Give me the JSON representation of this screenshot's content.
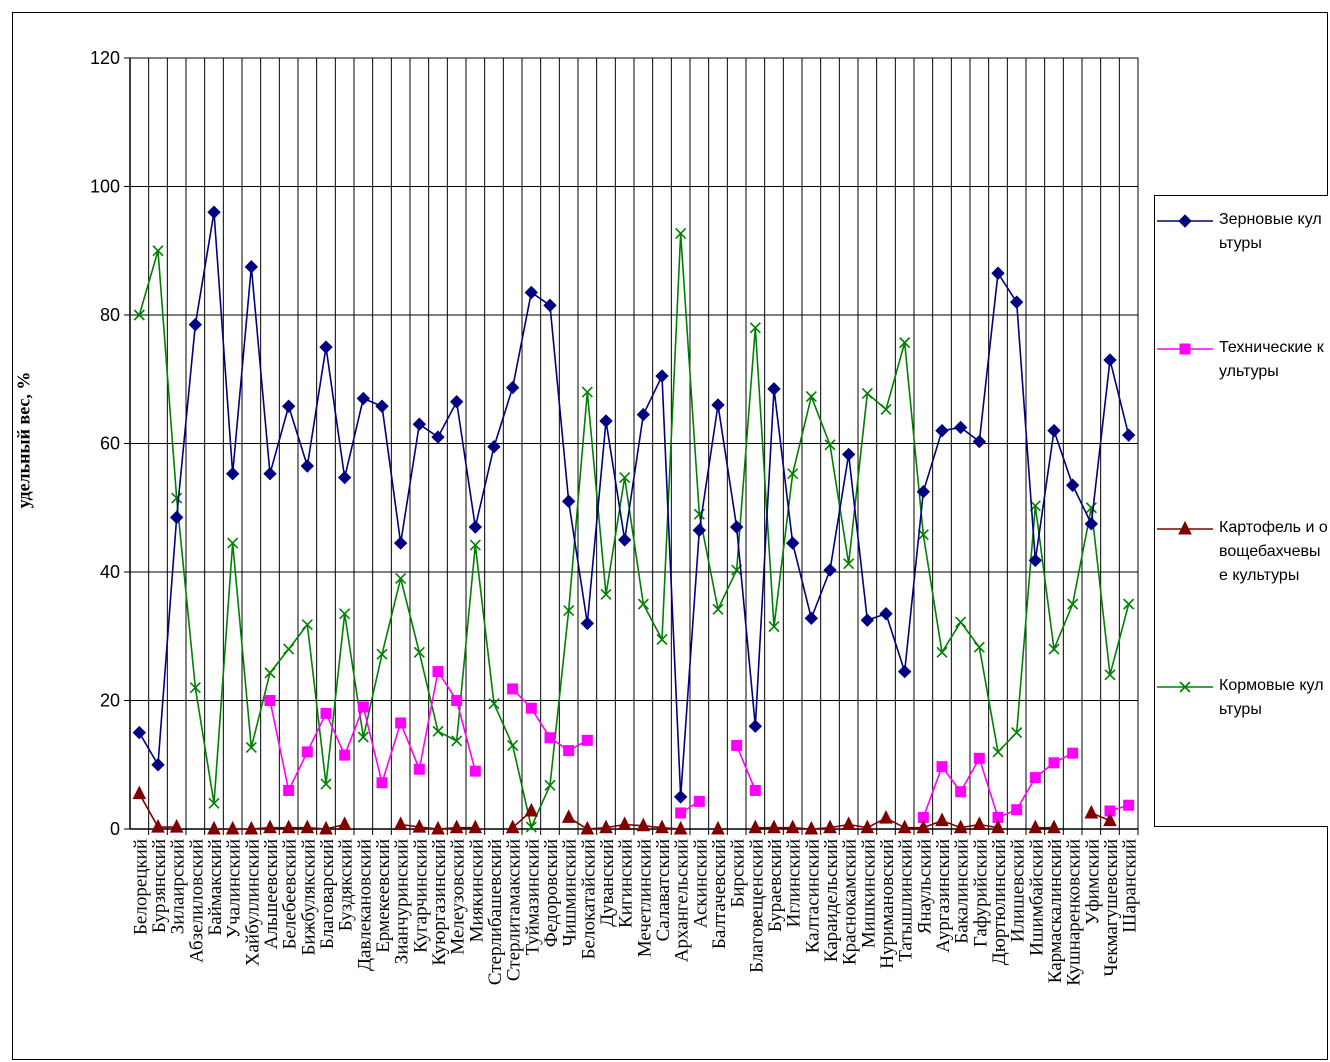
{
  "chart_data": {
    "type": "line",
    "title": "",
    "xlabel": "",
    "ylabel": "удельный вес, %",
    "ylim": [
      0,
      120
    ],
    "yticks": [
      "0",
      "20",
      "40",
      "60",
      "80",
      "100",
      "120"
    ],
    "grid": true,
    "legend_position": "right",
    "categories": [
      "Белорецкий",
      "Бурзянский",
      "Зилаирский",
      "Абзелиловский",
      "Баймакский",
      "Учалинский",
      "Хайбуллинский",
      "Альшеевский",
      "Белебеевский",
      "Бижбулякский",
      "Благоварский",
      "Буздякский",
      "Давлекановский",
      "Ермекеевский",
      "Зианчуринский",
      "Кугарчинский",
      "Куюргазинский",
      "Мелеузовский",
      "Миякинский",
      "Стерлибашевский",
      "Стерлитамакский",
      "Туймазинский",
      "Федоровский",
      "Чишминский",
      "Белокатайский",
      "Дуванский",
      "Кигинский",
      "Мечетлинский",
      "Салаватский",
      "Архангельский",
      "Аскинский",
      "Балтачевский",
      "Бирский",
      "Благовещенский",
      "Бураевский",
      "Иглинский",
      "Калтасинский",
      "Караидельский",
      "Краснокамский",
      "Мишкинский",
      "Нуримановский",
      "Татышлинский",
      "Янаульский",
      "Аургазинский",
      "Бакалинский",
      "Гафурийский",
      "Дюртюлинский",
      "Илишевский",
      "Ишимбайский",
      "Кармаскалинский",
      "Кушнаренковский",
      "Уфимский",
      "Чекмагушевский",
      "Шаранский"
    ],
    "series": [
      {
        "name": "Зерновые культуры",
        "color": "#000080",
        "marker": "diamond",
        "values": [
          15,
          10,
          48.5,
          78.5,
          96,
          55.3,
          87.5,
          55.3,
          65.8,
          56.5,
          75,
          54.7,
          67,
          65.8,
          44.5,
          63,
          61,
          66.5,
          47,
          59.5,
          68.7,
          83.5,
          81.5,
          51,
          32,
          63.5,
          45,
          64.5,
          70.5,
          5,
          46.5,
          66,
          47,
          16,
          68.5,
          44.5,
          32.8,
          40.3,
          58.3,
          32.5,
          33.5,
          24.5,
          52.5,
          62,
          62.5,
          60.3,
          86.5,
          82,
          41.8,
          62,
          53.5,
          47.5,
          73,
          61.3
        ]
      },
      {
        "name": "Технические культуры",
        "color": "#FF00FF",
        "marker": "square",
        "values": [
          null,
          null,
          null,
          null,
          null,
          null,
          null,
          20,
          6,
          12,
          18,
          11.5,
          19,
          7.2,
          16.5,
          9.3,
          24.5,
          20,
          9,
          null,
          21.8,
          18.8,
          14.2,
          12.2,
          13.8,
          null,
          null,
          null,
          null,
          2.5,
          4.3,
          null,
          13,
          6,
          null,
          null,
          null,
          null,
          null,
          null,
          null,
          null,
          1.8,
          9.7,
          5.8,
          11,
          1.8,
          3,
          8,
          10.3,
          11.8,
          null,
          2.8,
          3.7
        ]
      },
      {
        "name": "Картофель и овощебахчевые культуры",
        "color": "#800000",
        "marker": "triangle",
        "values": [
          5.5,
          0.3,
          0.3,
          null,
          0,
          0,
          0,
          0.2,
          0.2,
          0.2,
          0,
          0.7,
          null,
          null,
          0.7,
          0.3,
          0,
          0.2,
          0.2,
          null,
          0.2,
          2.8,
          null,
          1.8,
          0,
          0.2,
          0.7,
          0.5,
          0.2,
          0,
          null,
          0,
          null,
          0.2,
          0.2,
          0.2,
          0,
          0.2,
          0.7,
          0.2,
          1.7,
          0.2,
          0.2,
          1.3,
          0.2,
          0.7,
          0.2,
          null,
          0.2,
          0.2,
          null,
          2.5,
          1.3,
          null
        ]
      },
      {
        "name": "Кормовые культуры",
        "color": "#008000",
        "marker": "x",
        "values": [
          80,
          90,
          51.5,
          22,
          4,
          44.5,
          12.7,
          24.3,
          28,
          31.8,
          7,
          33.5,
          14.3,
          27.2,
          39,
          27.5,
          15.2,
          13.7,
          44.2,
          19.5,
          13,
          0.3,
          6.8,
          34,
          68,
          36.5,
          54.7,
          35,
          29.5,
          92.7,
          49,
          34.2,
          40.3,
          78,
          31.5,
          55.3,
          67.3,
          59.8,
          41.3,
          67.8,
          65.3,
          75.7,
          45.8,
          27.5,
          32.2,
          28.3,
          12,
          15,
          50.3,
          28,
          35,
          50,
          24,
          35
        ]
      }
    ]
  }
}
